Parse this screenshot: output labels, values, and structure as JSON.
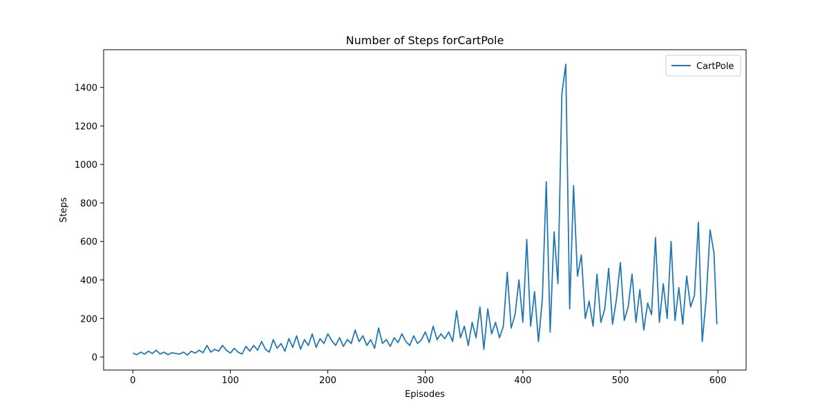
{
  "chart_data": {
    "type": "line",
    "title": "Number of Steps forCartPole",
    "x_label": "Episodes",
    "y_label": "Steps",
    "x": [
      0,
      4,
      8,
      12,
      16,
      20,
      24,
      28,
      32,
      36,
      40,
      44,
      48,
      52,
      56,
      60,
      64,
      68,
      72,
      76,
      80,
      84,
      88,
      92,
      96,
      100,
      104,
      108,
      112,
      116,
      120,
      124,
      128,
      132,
      136,
      140,
      144,
      148,
      152,
      156,
      160,
      164,
      168,
      172,
      176,
      180,
      184,
      188,
      192,
      196,
      200,
      204,
      208,
      212,
      216,
      220,
      224,
      228,
      232,
      236,
      240,
      244,
      248,
      252,
      256,
      260,
      264,
      268,
      272,
      276,
      280,
      284,
      288,
      292,
      296,
      300,
      304,
      308,
      312,
      316,
      320,
      324,
      328,
      332,
      336,
      340,
      344,
      348,
      352,
      356,
      360,
      364,
      368,
      372,
      376,
      380,
      384,
      388,
      392,
      396,
      400,
      404,
      408,
      412,
      416,
      420,
      424,
      428,
      432,
      436,
      440,
      444,
      448,
      452,
      456,
      460,
      464,
      468,
      472,
      476,
      480,
      484,
      488,
      492,
      496,
      500,
      504,
      508,
      512,
      516,
      520,
      524,
      528,
      532,
      536,
      540,
      544,
      548,
      552,
      556,
      560,
      564,
      568,
      572,
      576,
      580,
      584,
      588,
      592,
      596,
      599
    ],
    "series": [
      {
        "name": "CartPole",
        "color": "#1f77b4",
        "values": [
          20,
          12,
          25,
          15,
          30,
          18,
          35,
          15,
          25,
          12,
          22,
          18,
          15,
          25,
          10,
          30,
          20,
          35,
          22,
          60,
          25,
          40,
          30,
          60,
          35,
          20,
          45,
          25,
          15,
          55,
          30,
          60,
          35,
          80,
          40,
          25,
          90,
          45,
          70,
          30,
          95,
          50,
          110,
          40,
          90,
          60,
          120,
          50,
          95,
          70,
          120,
          85,
          60,
          100,
          55,
          90,
          70,
          140,
          80,
          110,
          60,
          90,
          45,
          150,
          70,
          90,
          55,
          100,
          75,
          120,
          80,
          60,
          110,
          70,
          90,
          130,
          75,
          160,
          90,
          120,
          95,
          130,
          80,
          240,
          100,
          160,
          60,
          180,
          100,
          260,
          40,
          250,
          120,
          180,
          100,
          160,
          440,
          150,
          220,
          400,
          180,
          610,
          160,
          340,
          80,
          300,
          910,
          130,
          650,
          380,
          1365,
          1520,
          250,
          890,
          420,
          530,
          200,
          290,
          160,
          430,
          180,
          250,
          460,
          170,
          300,
          490,
          190,
          260,
          430,
          180,
          350,
          140,
          280,
          220,
          620,
          180,
          380,
          200,
          600,
          190,
          360,
          170,
          420,
          260,
          320,
          700,
          80,
          300,
          660,
          540,
          170
        ]
      }
    ],
    "xlim": [
      -29.95,
      628.95
    ],
    "ylim": [
      -68,
      1596
    ],
    "xticks": [
      0,
      100,
      200,
      300,
      400,
      500,
      600
    ],
    "yticks": [
      0,
      200,
      400,
      600,
      800,
      1000,
      1200,
      1400
    ],
    "legend": "upper right"
  }
}
